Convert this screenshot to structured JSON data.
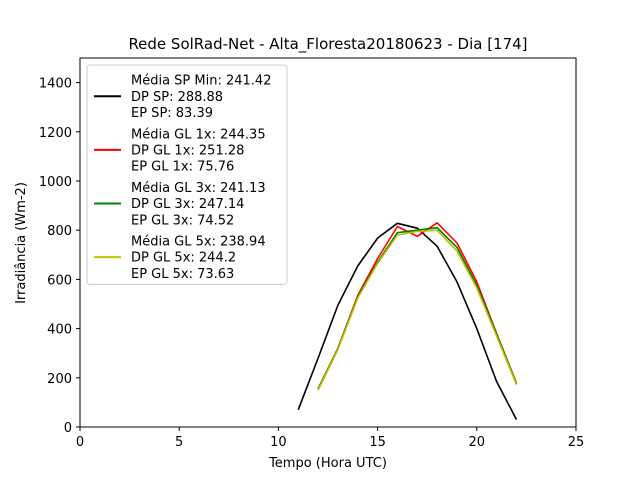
{
  "chart_data": {
    "type": "line",
    "title": "Rede SolRad-Net - Alta_Floresta20180623 - Dia [174]",
    "xlabel": "Tempo (Hora UTC)",
    "ylabel": "Irradiância (Wm-2)",
    "xlim": [
      0,
      25
    ],
    "ylim": [
      0,
      1500
    ],
    "xticks": [
      0,
      5,
      10,
      15,
      20,
      25
    ],
    "yticks": [
      0,
      200,
      400,
      600,
      800,
      1000,
      1200,
      1400
    ],
    "grid": false,
    "legend_position": "upper-left",
    "series": [
      {
        "name": "SP",
        "color": "#000000",
        "legend_lines": [
          "Média SP Min: 241.42",
          "DP SP: 288.88",
          "EP SP: 83.39"
        ],
        "x": [
          11,
          12,
          13,
          14,
          15,
          16,
          17,
          18,
          19,
          20,
          21,
          22
        ],
        "y": [
          70,
          280,
          495,
          655,
          768,
          828,
          808,
          735,
          590,
          400,
          185,
          30
        ]
      },
      {
        "name": "GL 1x",
        "color": "#ff0000",
        "legend_lines": [
          "Média GL 1x: 244.35",
          "DP GL 1x: 251.28",
          "EP GL 1x: 75.76"
        ],
        "x": [
          12,
          13,
          14,
          15,
          16,
          16.5,
          17,
          18,
          19,
          20,
          21,
          22
        ],
        "y": [
          155,
          320,
          535,
          685,
          815,
          795,
          775,
          830,
          748,
          590,
          380,
          178
        ]
      },
      {
        "name": "GL 3x",
        "color": "#008000",
        "legend_lines": [
          "Média GL 3x: 241.13",
          "DP GL 3x: 247.14",
          "EP GL 3x: 74.52"
        ],
        "x": [
          12,
          13,
          14,
          15,
          16,
          17,
          18,
          19,
          20,
          21,
          22
        ],
        "y": [
          155,
          318,
          530,
          670,
          790,
          800,
          810,
          730,
          575,
          378,
          175
        ]
      },
      {
        "name": "GL 5x",
        "color": "#bfbf00",
        "legend_lines": [
          "Média GL 5x: 238.94",
          "DP GL 5x: 244.2",
          "EP GL 5x: 73.63"
        ],
        "x": [
          12,
          13,
          14,
          15,
          16,
          17,
          18,
          19,
          20,
          21,
          22
        ],
        "y": [
          150,
          315,
          525,
          665,
          780,
          795,
          800,
          715,
          565,
          370,
          172
        ]
      }
    ]
  }
}
